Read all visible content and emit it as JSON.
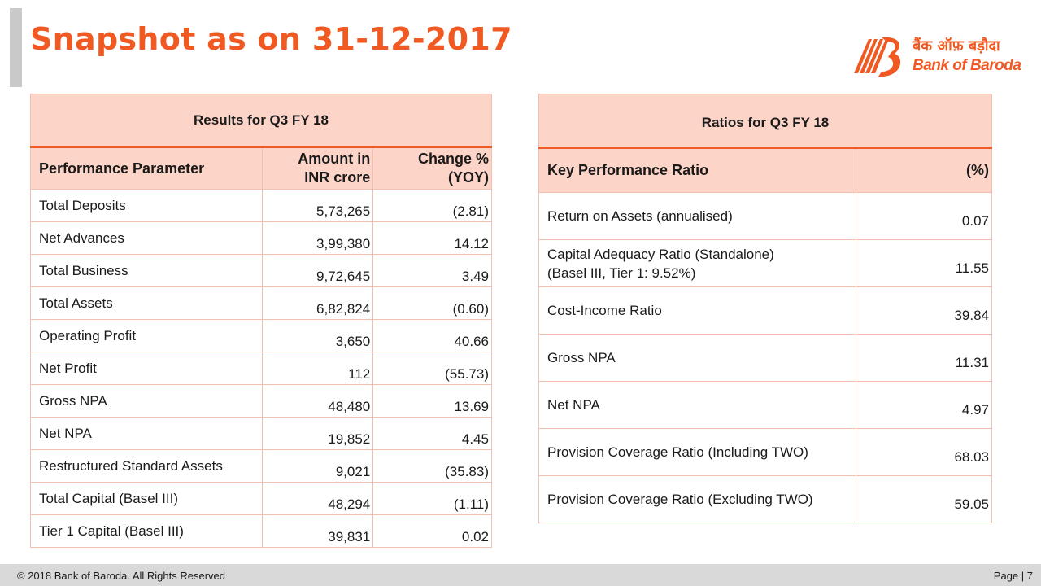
{
  "title": "Snapshot as on 31-12-2017",
  "logo": {
    "hindi": "बैंक ऑफ़ बड़ौदा",
    "english": "Bank of Baroda"
  },
  "results": {
    "heading": "Results for Q3 FY 18",
    "columns": [
      "Performance Parameter",
      "Amount in INR crore",
      "Change % (YOY)"
    ],
    "col2_line1": "Amount in",
    "col2_line2": "INR crore",
    "col3_line1": "Change %",
    "col3_line2": "(YOY)",
    "rows": [
      {
        "param": "Total Deposits",
        "amount": "5,73,265",
        "change": "(2.81)"
      },
      {
        "param": "Net Advances",
        "amount": "3,99,380",
        "change": "14.12"
      },
      {
        "param": "Total Business",
        "amount": "9,72,645",
        "change": "3.49"
      },
      {
        "param": "Total Assets",
        "amount": "6,82,824",
        "change": "(0.60)"
      },
      {
        "param": "Operating Profit",
        "amount": "3,650",
        "change": "40.66"
      },
      {
        "param": "Net Profit",
        "amount": "112",
        "change": "(55.73)"
      },
      {
        "param": "Gross NPA",
        "amount": "48,480",
        "change": "13.69"
      },
      {
        "param": "Net NPA",
        "amount": "19,852",
        "change": "4.45"
      },
      {
        "param": "Restructured Standard Assets",
        "amount": "9,021",
        "change": "(35.83)"
      },
      {
        "param": "Total Capital (Basel III)",
        "amount": "48,294",
        "change": "(1.11)"
      },
      {
        "param": "Tier 1 Capital (Basel III)",
        "amount": "39,831",
        "change": "0.02"
      }
    ]
  },
  "ratios": {
    "heading": "Ratios for Q3 FY 18",
    "columns": [
      "Key Performance Ratio",
      "(%)"
    ],
    "rows": [
      {
        "name": "Return on  Assets (annualised)",
        "value": "0.07"
      },
      {
        "name": "Capital Adequacy Ratio (Standalone)",
        "name_line2": "(Basel III,  Tier 1: 9.52%)",
        "value": "11.55"
      },
      {
        "name": "Cost-Income Ratio",
        "value": "39.84"
      },
      {
        "name": "Gross NPA",
        "value": "11.31"
      },
      {
        "name": "Net NPA",
        "value": "4.97"
      },
      {
        "name": "Provision Coverage Ratio (Including TWO)",
        "value": "68.03"
      },
      {
        "name": "Provision Coverage Ratio (Excluding TWO)",
        "value": "59.05"
      }
    ]
  },
  "footer": {
    "copyright": "© 2018 Bank of Baroda. All Rights Reserved",
    "page": "Page | 7"
  },
  "colors": {
    "accent": "#f05a22",
    "header_fill": "#fdd5c8",
    "footer_fill": "#d9d9d9"
  }
}
